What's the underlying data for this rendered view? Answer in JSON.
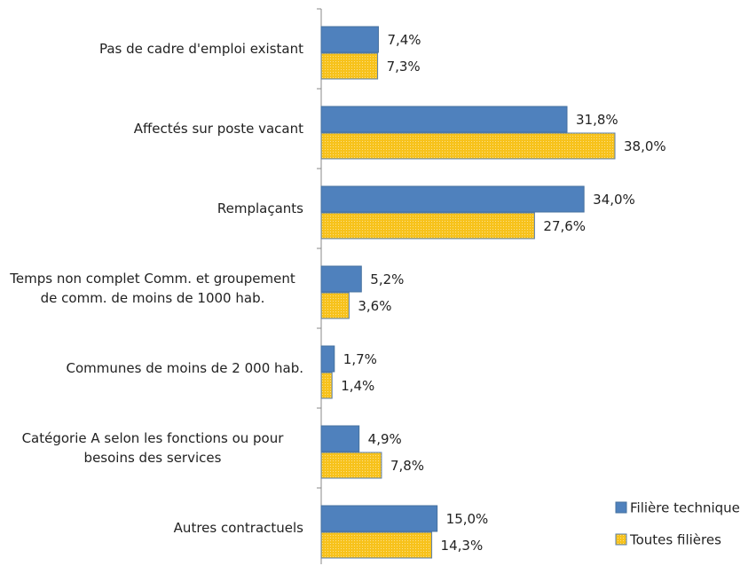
{
  "chart_data": {
    "type": "bar",
    "orientation": "horizontal",
    "categories": [
      "Pas de cadre d'emploi existant",
      "Affectés sur poste vacant",
      "Remplaçants",
      "Temps non complet Comm. et groupement de comm. de moins de 1000 hab.",
      "Communes de moins de 2 000 hab.",
      "Catégorie A selon les fonctions ou pour besoins des services",
      "Autres contractuels"
    ],
    "series": [
      {
        "name": "Filière technique",
        "color": "#4f81bd",
        "values": [
          7.4,
          31.8,
          34.0,
          5.2,
          1.7,
          4.9,
          15.0
        ],
        "value_labels": [
          "7,4%",
          "31,8%",
          "34,0%",
          "5,2%",
          "1,7%",
          "4,9%",
          "15,0%"
        ]
      },
      {
        "name": "Toutes filières",
        "color": "#f7c21b",
        "values": [
          7.3,
          38.0,
          27.6,
          3.6,
          1.4,
          7.8,
          14.3
        ],
        "value_labels": [
          "7,3%",
          "38,0%",
          "27,6%",
          "3,6%",
          "1,4%",
          "7,8%",
          "14,3%"
        ]
      }
    ],
    "legend": "bottom-right"
  }
}
